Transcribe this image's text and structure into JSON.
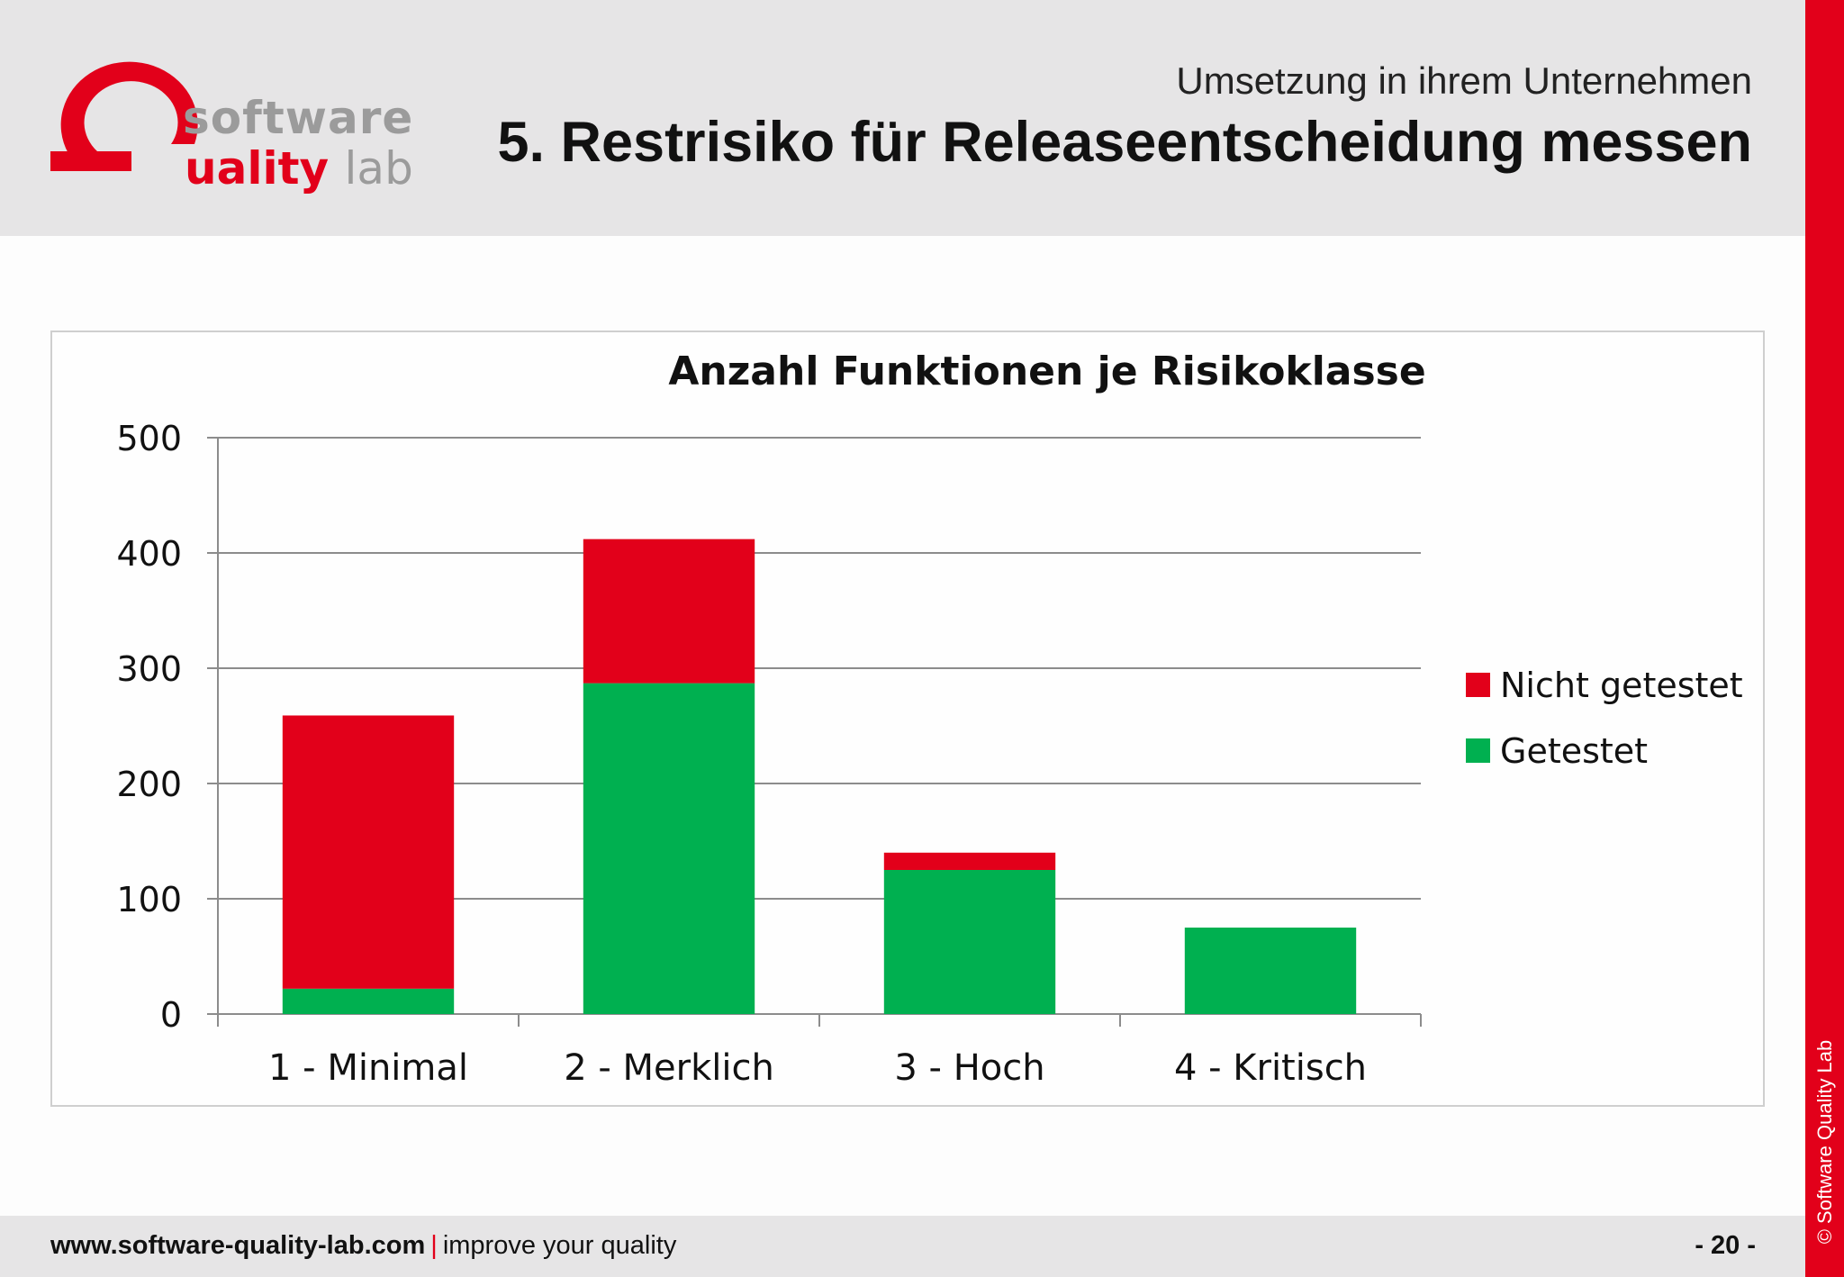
{
  "header": {
    "subtitle": "Umsetzung in ihrem Unternehmen",
    "title": "5. Restrisiko für Releaseentscheidung messen"
  },
  "logo": {
    "line1": "software",
    "line2_red": "uality",
    "line2_grey": "lab",
    "colors": {
      "red": "#e2001a",
      "grey": "#9b9b9b"
    }
  },
  "sidebar": {
    "copyright": "© Software Quality Lab"
  },
  "footer": {
    "url": "www.software-quality-lab.com",
    "separator": "|",
    "tagline": "improve your quality",
    "page": "- 20 -"
  },
  "chart_data": {
    "type": "bar",
    "stacked": true,
    "title": "Anzahl Funktionen je Risikoklasse",
    "xlabel": "",
    "ylabel": "",
    "categories": [
      "1 - Minimal",
      "2 - Merklich",
      "3 - Hoch",
      "4 - Kritisch"
    ],
    "series": [
      {
        "name": "Getestet",
        "color": "#00b050",
        "values": [
          22,
          287,
          125,
          75
        ]
      },
      {
        "name": "Nicht getestet",
        "color": "#e2001a",
        "values": [
          237,
          125,
          15,
          0
        ]
      }
    ],
    "ylim": [
      0,
      500
    ],
    "yticks": [
      0,
      100,
      200,
      300,
      400,
      500
    ],
    "grid": true,
    "legend": "right",
    "legend_order": [
      "Nicht getestet",
      "Getestet"
    ]
  }
}
